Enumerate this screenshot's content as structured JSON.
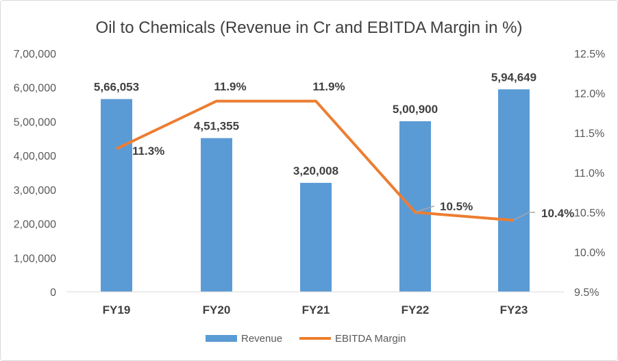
{
  "chart_data": {
    "type": "bar+line",
    "title": "Oil to Chemicals (Revenue in Cr and EBITDA Margin in %)",
    "categories": [
      "FY19",
      "FY20",
      "FY21",
      "FY22",
      "FY23"
    ],
    "series": [
      {
        "name": "Revenue",
        "type": "bar",
        "axis": "left",
        "color": "#5B9BD5",
        "values": [
          566053,
          451355,
          320008,
          500900,
          594649
        ],
        "labels": [
          "5,66,053",
          "4,51,355",
          "3,20,008",
          "5,00,900",
          "5,94,649"
        ]
      },
      {
        "name": "EBITDA Margin",
        "type": "line",
        "axis": "right",
        "color": "#ED7D31",
        "values": [
          11.3,
          11.9,
          11.9,
          10.5,
          10.4
        ],
        "labels": [
          "11.3%",
          "11.9%",
          "11.9%",
          "10.5%",
          "10.4%"
        ]
      }
    ],
    "left_axis": {
      "min": 0,
      "max": 700000,
      "ticks": [
        "0",
        "1,00,000",
        "2,00,000",
        "3,00,000",
        "4,00,000",
        "5,00,000",
        "6,00,000",
        "7,00,000"
      ]
    },
    "right_axis": {
      "min": 9.5,
      "max": 12.5,
      "ticks": [
        "9.5%",
        "10.0%",
        "10.5%",
        "11.0%",
        "11.5%",
        "12.0%",
        "12.5%"
      ]
    },
    "grid": false,
    "legend": "bottom"
  }
}
